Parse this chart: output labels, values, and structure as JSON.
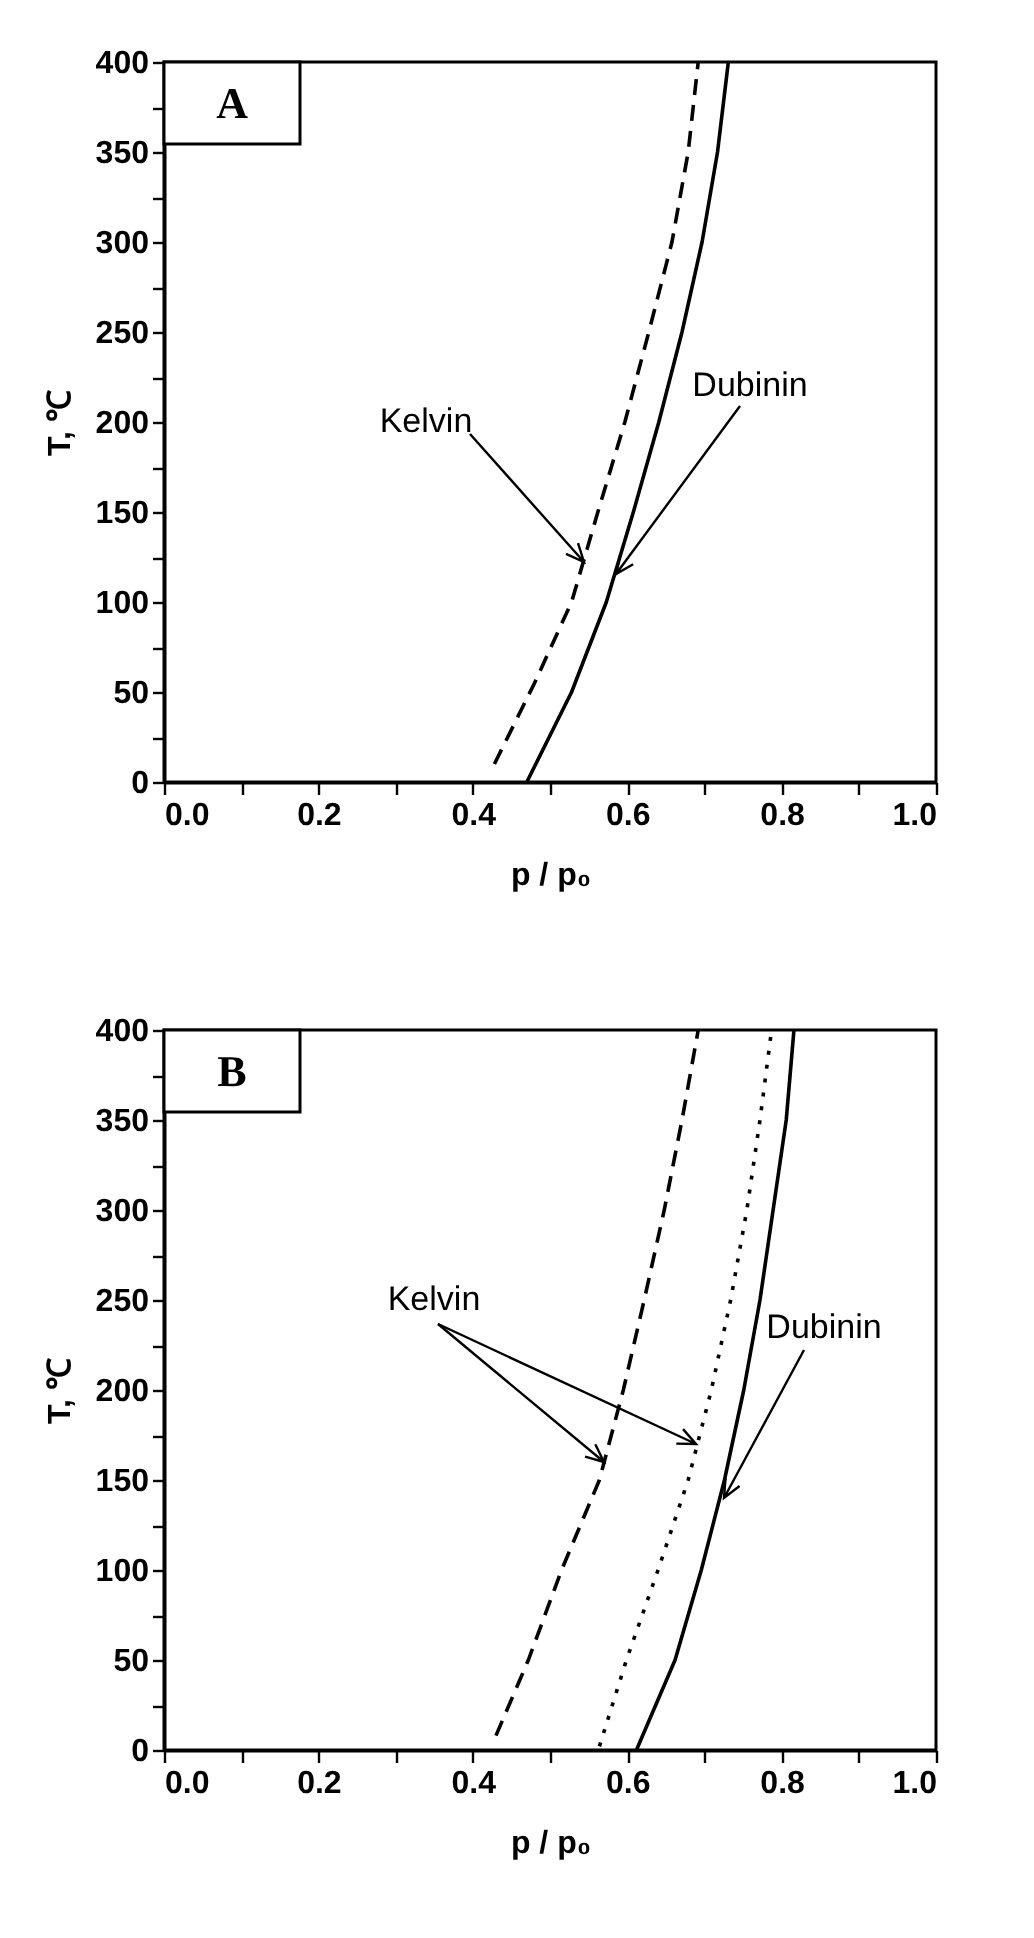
{
  "chart_data": [
    {
      "type": "line",
      "title": "A",
      "xlabel": "p / p₀",
      "ylabel": "T, ℃",
      "xlim": [
        0,
        1
      ],
      "ylim": [
        0,
        400
      ],
      "xticks": [
        {
          "value": 0,
          "label": "0.0"
        },
        {
          "value": 0.1,
          "label": null
        },
        {
          "value": 0.2,
          "label": "0.2"
        },
        {
          "value": 0.3,
          "label": null
        },
        {
          "value": 0.4,
          "label": "0.4"
        },
        {
          "value": 0.5,
          "label": null
        },
        {
          "value": 0.6,
          "label": "0.6"
        },
        {
          "value": 0.7,
          "label": null
        },
        {
          "value": 0.8,
          "label": "0.8"
        },
        {
          "value": 0.9,
          "label": null
        },
        {
          "value": 1,
          "label": "1.0"
        }
      ],
      "yticks": [
        0,
        {
          "value": 25,
          "label": null
        },
        50,
        {
          "value": 75,
          "label": null
        },
        100,
        {
          "value": 125,
          "label": null
        },
        150,
        {
          "value": 175,
          "label": null
        },
        200,
        {
          "value": 225,
          "label": null
        },
        250,
        {
          "value": 275,
          "label": null
        },
        300,
        {
          "value": 325,
          "label": null
        },
        350,
        {
          "value": 375,
          "label": null
        },
        400
      ],
      "grid": false,
      "marker": "none",
      "annotations": [
        "Kelvin",
        "Dubinin"
      ],
      "series": [
        {
          "color": "#000000",
          "line_style": "dashed",
          "x": [
            0.428,
            0.48,
            0.528,
            0.562,
            0.597,
            0.628,
            0.658,
            0.679,
            0.692
          ],
          "values": [
            10,
            55,
            100,
            150,
            200,
            250,
            300,
            350,
            400
          ]
        },
        {
          "color": "#000000",
          "line_style": "solid",
          "x": [
            0.47,
            0.528,
            0.573,
            0.608,
            0.641,
            0.671,
            0.697,
            0.717,
            0.731
          ],
          "values": [
            0,
            50,
            100,
            150,
            200,
            250,
            300,
            350,
            400
          ]
        }
      ]
    },
    {
      "type": "line",
      "title": "B",
      "xlabel": "p / p₀",
      "ylabel": "T, ℃",
      "xlim": [
        0,
        1
      ],
      "ylim": [
        0,
        400
      ],
      "xticks": [
        {
          "value": 0,
          "label": "0.0"
        },
        {
          "value": 0.1,
          "label": null
        },
        {
          "value": 0.2,
          "label": "0.2"
        },
        {
          "value": 0.3,
          "label": null
        },
        {
          "value": 0.4,
          "label": "0.4"
        },
        {
          "value": 0.5,
          "label": null
        },
        {
          "value": 0.6,
          "label": "0.6"
        },
        {
          "value": 0.7,
          "label": null
        },
        {
          "value": 0.8,
          "label": "0.8"
        },
        {
          "value": 0.9,
          "label": null
        },
        {
          "value": 1,
          "label": "1.0"
        }
      ],
      "yticks": [
        0,
        {
          "value": 25,
          "label": null
        },
        50,
        {
          "value": 75,
          "label": null
        },
        100,
        {
          "value": 125,
          "label": null
        },
        150,
        {
          "value": 175,
          "label": null
        },
        200,
        {
          "value": 225,
          "label": null
        },
        250,
        {
          "value": 275,
          "label": null
        },
        300,
        {
          "value": 325,
          "label": null
        },
        350,
        {
          "value": 375,
          "label": null
        },
        400
      ],
      "grid": false,
      "marker": "none",
      "annotations": [
        "Kelvin",
        "Dubinin"
      ],
      "series": [
        {
          "color": "#000000",
          "line_style": "dashed",
          "x": [
            0.43,
            0.472,
            0.515,
            0.564,
            0.595,
            0.622,
            0.648,
            0.671,
            0.692
          ],
          "values": [
            8,
            50,
            100,
            150,
            200,
            250,
            300,
            350,
            400
          ]
        },
        {
          "color": "#000000",
          "line_style": "dotted",
          "x": [
            0.564,
            0.599,
            0.64,
            0.679,
            0.709,
            0.734,
            0.755,
            0.772,
            0.787
          ],
          "values": [
            2,
            50,
            100,
            150,
            200,
            250,
            300,
            350,
            400
          ]
        },
        {
          "color": "#000000",
          "line_style": "solid",
          "x": [
            0.612,
            0.662,
            0.696,
            0.726,
            0.751,
            0.772,
            0.789,
            0.806,
            0.816
          ],
          "values": [
            0,
            50,
            100,
            150,
            200,
            250,
            300,
            350,
            400
          ]
        }
      ]
    }
  ]
}
